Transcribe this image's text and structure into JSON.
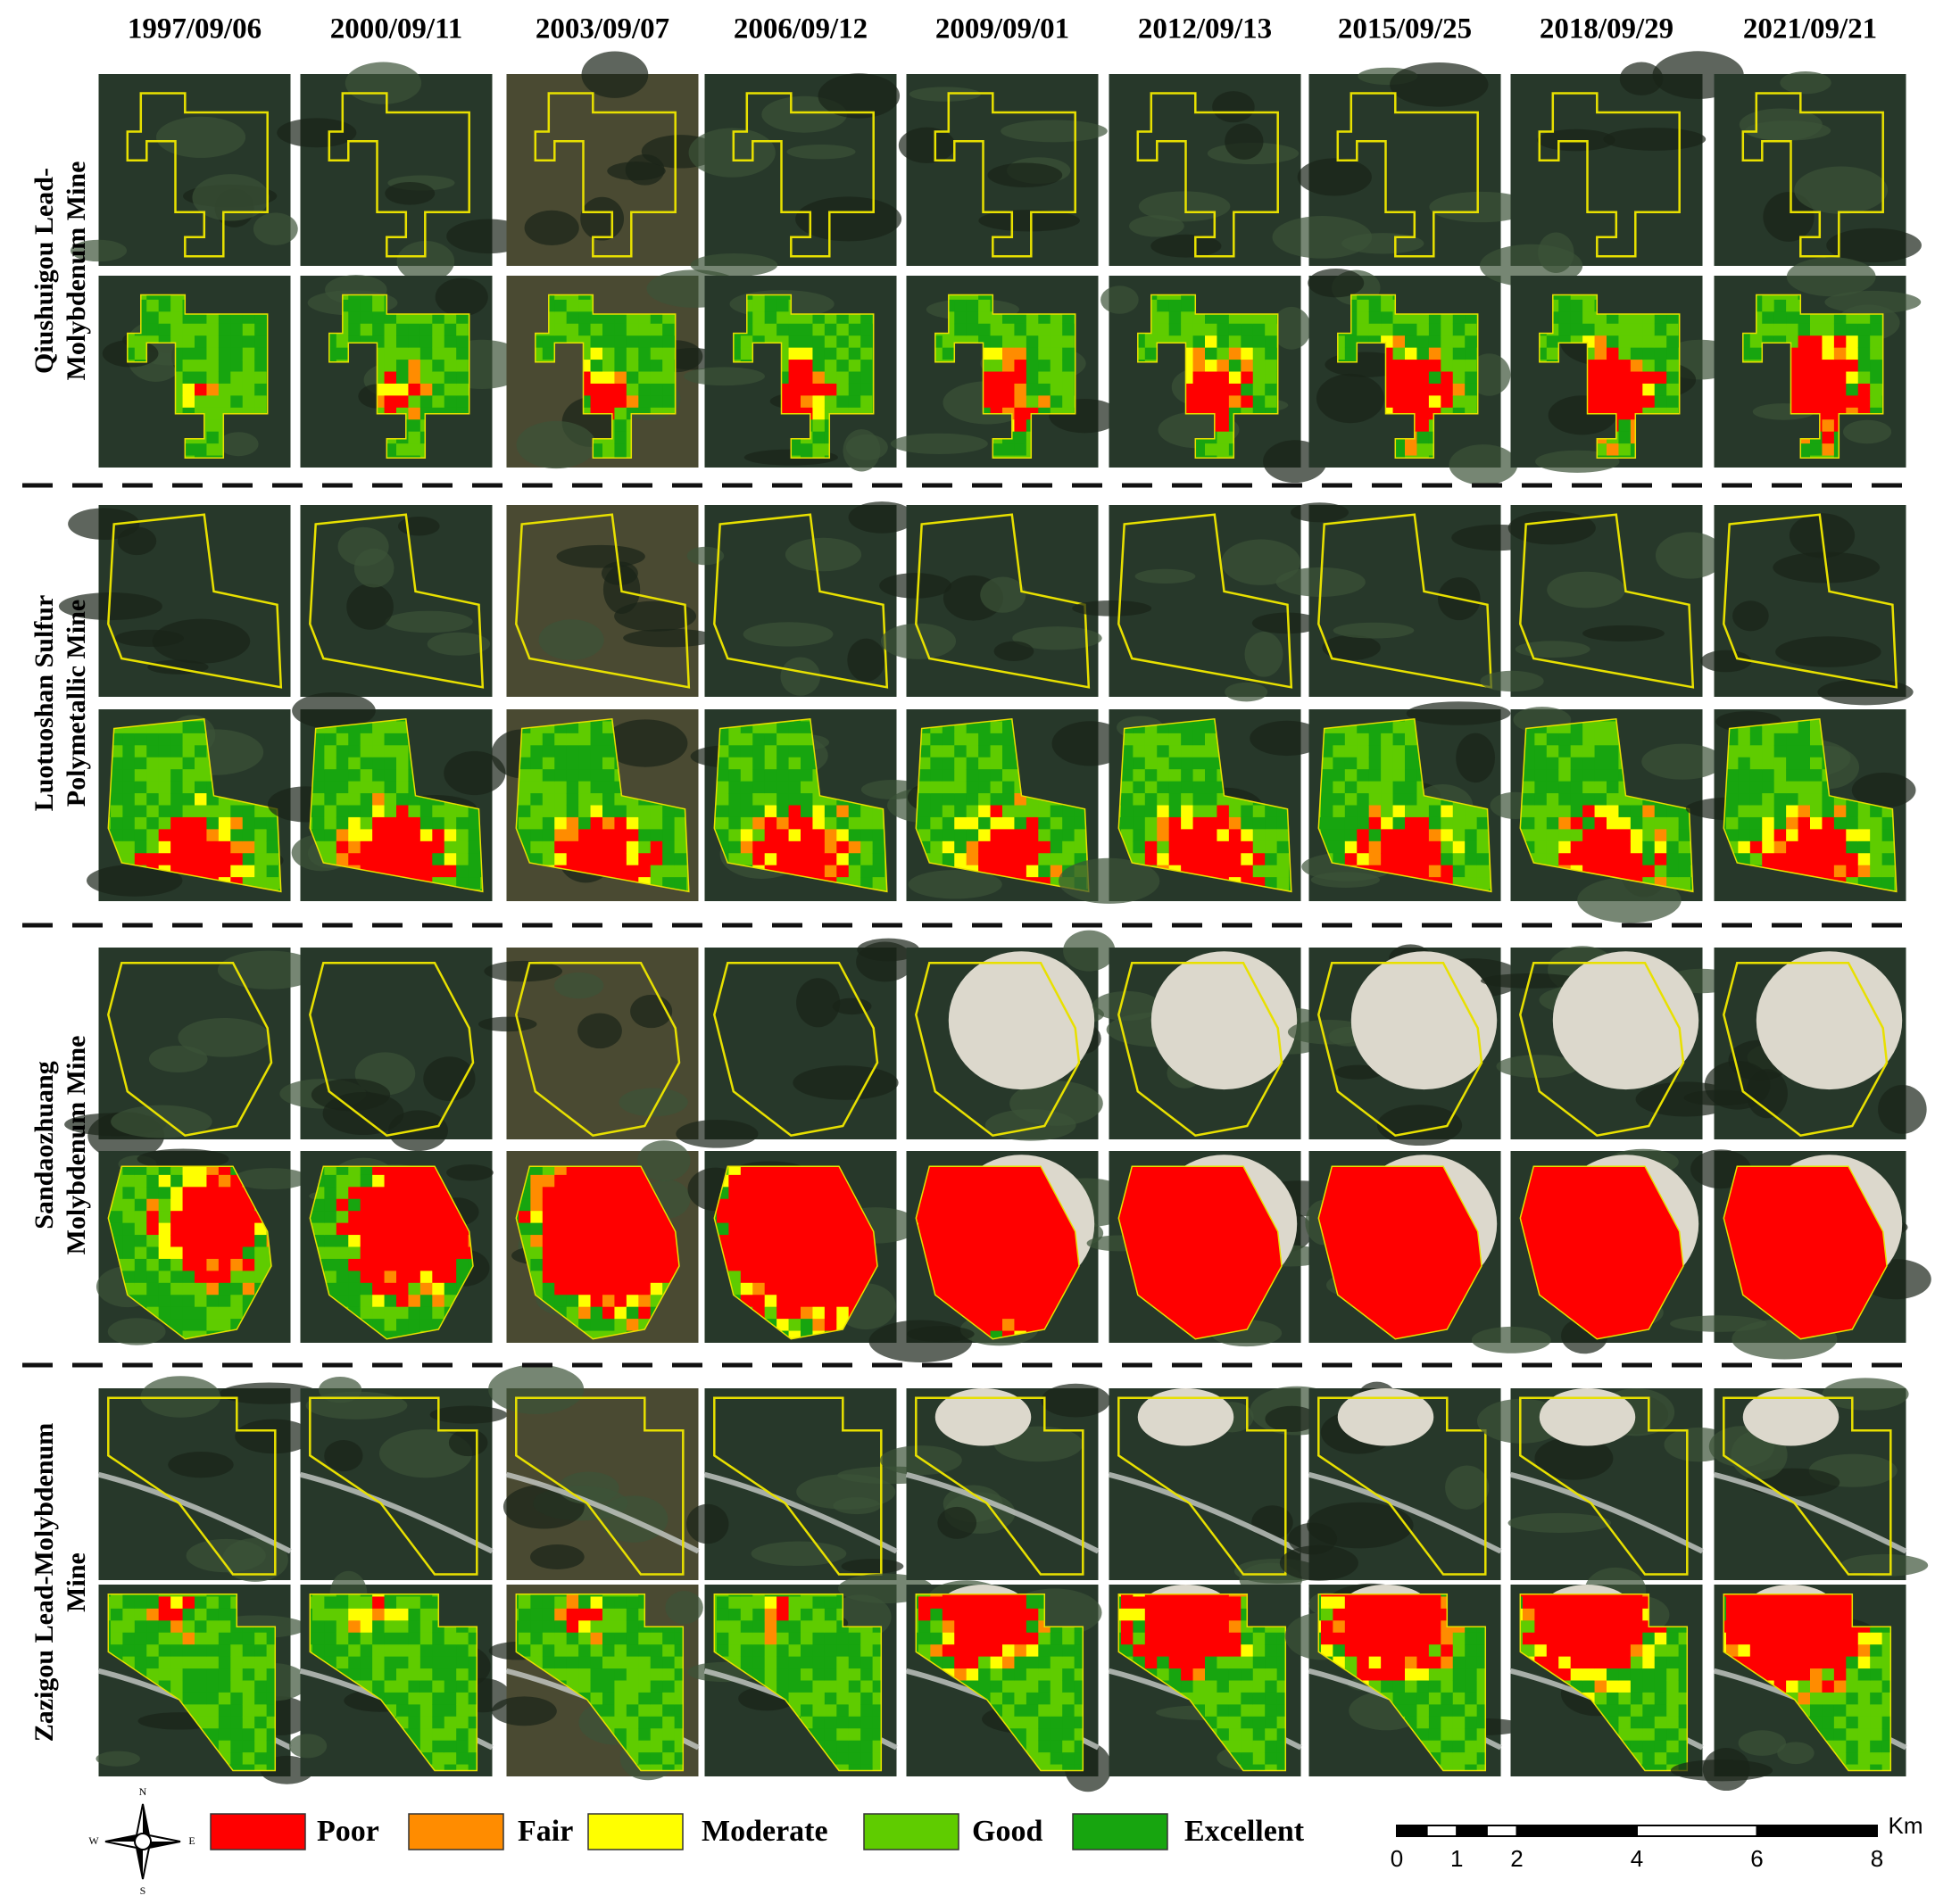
{
  "header": {
    "dates": [
      "1997/09/06",
      "2000/09/11",
      "2003/09/07",
      "2006/09/12",
      "2009/09/01",
      "2012/09/13",
      "2015/09/25",
      "2018/09/29",
      "2021/09/21"
    ]
  },
  "mines": [
    {
      "name_lines": [
        "Qiushuigou Lead-",
        "Molybdenum Mine"
      ]
    },
    {
      "name_lines": [
        "Luotuoshan Sulfur",
        "Polymetallic Mine"
      ]
    },
    {
      "name_lines": [
        "Sandaozhuang",
        "Molybdenum Mine"
      ]
    },
    {
      "name_lines": [
        "Zazigou Lead-Molybdenum",
        "Mine"
      ]
    }
  ],
  "legend": [
    {
      "label": "Poor",
      "color": "#ff0000"
    },
    {
      "label": "Fair",
      "color": "#ff8c00"
    },
    {
      "label": "Moderate",
      "color": "#ffff00"
    },
    {
      "label": "Good",
      "color": "#5fcc00"
    },
    {
      "label": "Excellent",
      "color": "#17a50f"
    }
  ],
  "compass": {
    "n": "N",
    "w": "W",
    "e": "E",
    "s": "S"
  },
  "scale_bar": {
    "labels": [
      "0",
      "1",
      "2",
      "4",
      "6",
      "8"
    ],
    "unit": "Km"
  }
}
